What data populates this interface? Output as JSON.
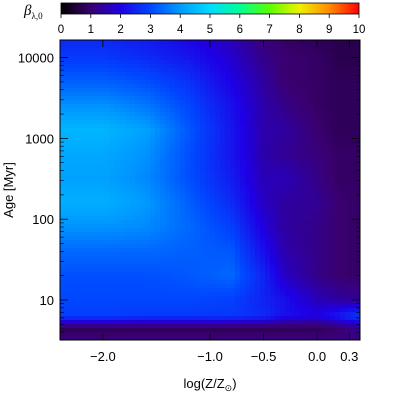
{
  "chart_data": {
    "type": "heatmap",
    "colorbar": {
      "label_symbol": "β",
      "label_subscript": "λ,0",
      "ticks": [
        "0",
        "1",
        "2",
        "3",
        "4",
        "5",
        "6",
        "7",
        "8",
        "9",
        "10"
      ],
      "range": [
        0,
        10
      ],
      "colormap": [
        "#000000",
        "#3a0070",
        "#1e00e6",
        "#0046ff",
        "#009bff",
        "#00dcff",
        "#00ff96",
        "#5aff00",
        "#f0f000",
        "#ff8c00",
        "#ff0000"
      ]
    },
    "x_axis": {
      "label": "log(Z/Z",
      "label_sub": "⊙",
      "label_close": ")",
      "ticks": [
        {
          "value": -2.0,
          "label": "−2.0"
        },
        {
          "value": -1.0,
          "label": "−1.0"
        },
        {
          "value": -0.5,
          "label": "−0.5"
        },
        {
          "value": 0.0,
          "label": "0.0"
        },
        {
          "value": 0.3,
          "label": "0.3"
        }
      ],
      "range": [
        -2.4,
        0.4
      ]
    },
    "y_axis": {
      "label": "Age [Myr]",
      "scale": "log",
      "ticks": [
        {
          "value": 10,
          "label": "10"
        },
        {
          "value": 100,
          "label": "100"
        },
        {
          "value": 1000,
          "label": "1000"
        },
        {
          "value": 10000,
          "label": "10000"
        }
      ],
      "range": [
        3.2,
        16500
      ]
    },
    "z_description": "beta_lambda,0 values over metallicity and age",
    "z_grid": {
      "x": [
        -2.4,
        -2.0,
        -1.6,
        -1.2,
        -0.8,
        -0.5,
        -0.3,
        0.0,
        0.2,
        0.4
      ],
      "log_age": [
        0.505,
        0.65,
        0.8,
        1.0,
        1.3,
        1.6,
        1.9,
        2.2,
        2.5,
        2.8,
        3.1,
        3.4,
        3.7,
        4.0,
        4.2
      ],
      "values": [
        [
          1.1,
          1.1,
          1.1,
          1.1,
          1.1,
          1.1,
          1.1,
          1.1,
          1.1,
          1.1
        ],
        [
          0.8,
          0.8,
          0.8,
          0.8,
          0.8,
          0.8,
          0.8,
          0.8,
          1.0,
          1.3
        ],
        [
          2.9,
          2.9,
          2.8,
          2.8,
          2.8,
          2.6,
          2.2,
          2.0,
          2.4,
          2.9
        ],
        [
          3.0,
          3.0,
          3.0,
          3.0,
          2.9,
          2.5,
          2.2,
          1.6,
          1.4,
          1.3
        ],
        [
          3.1,
          3.1,
          3.1,
          3.2,
          3.4,
          2.5,
          1.7,
          1.2,
          1.0,
          0.9
        ],
        [
          3.4,
          3.4,
          3.4,
          3.3,
          3.2,
          2.2,
          1.5,
          1.2,
          1.0,
          0.9
        ],
        [
          3.9,
          3.9,
          3.8,
          3.4,
          2.9,
          1.9,
          1.4,
          1.2,
          1.0,
          0.9
        ],
        [
          4.3,
          4.3,
          4.0,
          3.3,
          2.6,
          1.7,
          1.4,
          1.3,
          1.0,
          0.9
        ],
        [
          4.1,
          4.1,
          3.8,
          3.1,
          2.4,
          1.6,
          1.6,
          1.2,
          0.9,
          0.9
        ],
        [
          4.2,
          4.2,
          3.9,
          3.1,
          2.3,
          1.5,
          1.3,
          1.1,
          0.9,
          0.9
        ],
        [
          4.4,
          4.4,
          4.1,
          3.2,
          2.3,
          1.5,
          1.4,
          1.0,
          0.8,
          0.8
        ],
        [
          3.9,
          3.9,
          3.6,
          3.0,
          2.2,
          1.5,
          1.2,
          0.9,
          0.8,
          0.8
        ],
        [
          3.3,
          3.3,
          3.1,
          2.7,
          2.0,
          1.4,
          1.0,
          0.9,
          0.8,
          0.8
        ],
        [
          2.8,
          2.8,
          2.6,
          2.3,
          1.8,
          1.2,
          1.0,
          0.9,
          0.7,
          0.7
        ],
        [
          2.6,
          2.6,
          2.4,
          2.1,
          1.6,
          1.1,
          0.9,
          0.8,
          0.7,
          0.7
        ]
      ]
    }
  }
}
